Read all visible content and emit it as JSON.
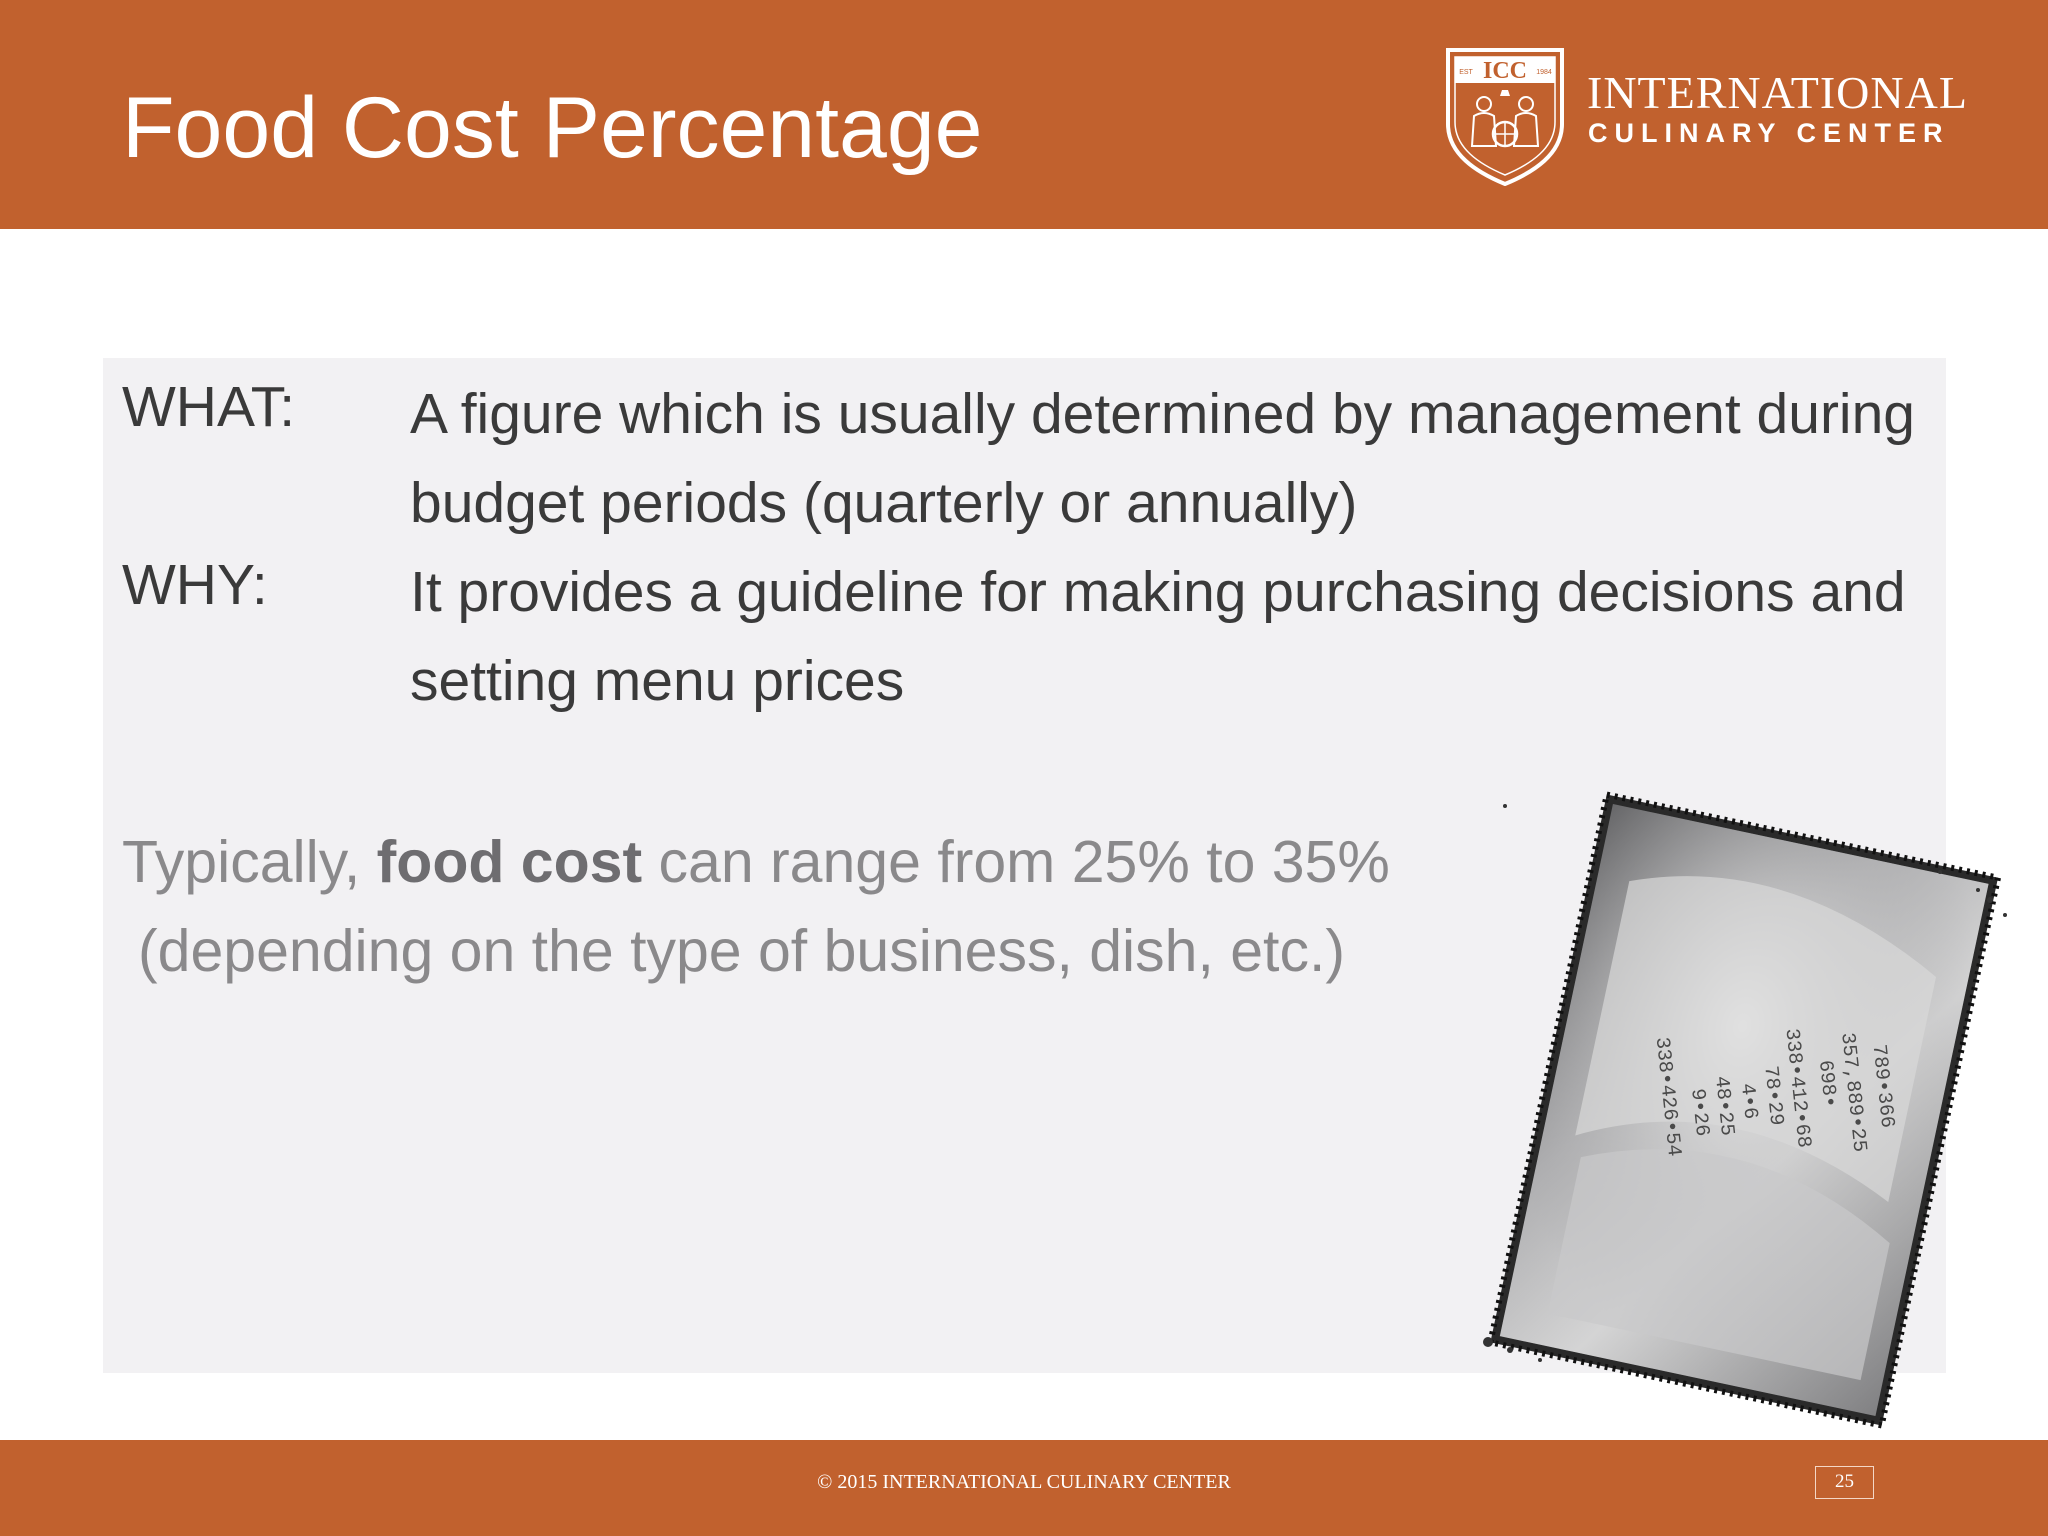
{
  "slide": {
    "title": "Food Cost Percentage",
    "page_number": "25"
  },
  "logo": {
    "line1": "INTERNATIONAL",
    "line2": "CULINARY CENTER",
    "shield_text": "ICC",
    "shield_est": "EST",
    "shield_year": "1984"
  },
  "definitions": [
    {
      "label": "WHAT:",
      "text": "A figure which is usually determined by management during budget periods (quarterly or annually)"
    },
    {
      "label": "WHY:",
      "text": "It provides a guideline for making purchasing decisions and setting menu prices"
    }
  ],
  "note": {
    "prefix": "Typically, ",
    "bold": "food cost",
    "suffix": " can range from 25% to 35%",
    "line2": "(depending on the type of business, dish, etc.)"
  },
  "photo": {
    "receipt_lines": [
      "789•366",
      "357,889•25",
      "698•",
      "338•412•68",
      "78•29",
      "4•6",
      "48•25",
      "9•26",
      "338•426•54"
    ]
  },
  "footer": {
    "copyright": "© 2015 INTERNATIONAL CULINARY CENTER"
  },
  "colors": {
    "brand_orange": "#c1612e",
    "content_bg": "#f2f1f3",
    "body_text": "#3a3a3a",
    "note_text": "#8a898b"
  }
}
